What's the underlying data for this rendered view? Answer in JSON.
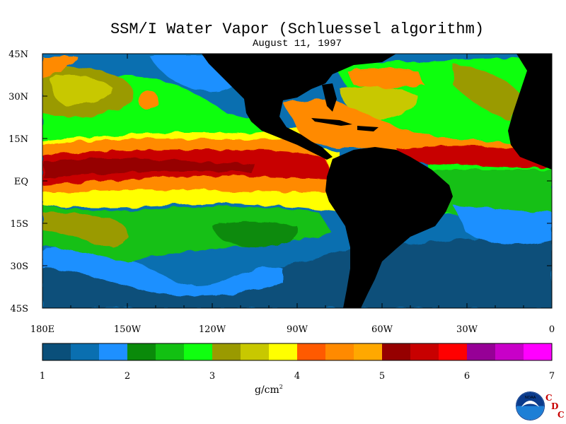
{
  "title": "SSM/I Water Vapor (Schluessel algorithm)",
  "date": "August 11, 1997",
  "lat_labels": [
    "45N",
    "30N",
    "15N",
    "EQ",
    "15S",
    "30S",
    "45S"
  ],
  "lon_labels": [
    "180E",
    "150W",
    "120W",
    "90W",
    "60W",
    "30W",
    "0"
  ],
  "colorbar": {
    "labels": [
      "1",
      "2",
      "3",
      "4",
      "5",
      "6",
      "7"
    ],
    "unit": "g/cm",
    "unit_sup": "2",
    "colors": [
      "#0a4f7a",
      "#0a6fb0",
      "#1e90ff",
      "#0a8a0a",
      "#12c012",
      "#10ff10",
      "#9a9a00",
      "#c8c800",
      "#ffff00",
      "#ff5a00",
      "#ff8a00",
      "#ffa800",
      "#960000",
      "#c80000",
      "#ff0000",
      "#960096",
      "#c800c8",
      "#ff00ff"
    ]
  },
  "logo": {
    "text": "NOAA",
    "icon": "noaa-logo"
  },
  "cdc": {
    "c1": "C",
    "d": "D",
    "c2": "C"
  },
  "map_colors": {
    "land": "#000000",
    "deep_blue": "#0a4f7a",
    "blue": "#0a6fb0",
    "light_blue": "#1e90ff",
    "dark_green": "#0a8a0a",
    "green": "#12c012",
    "bright_green": "#10ff10",
    "olive": "#9a9a00",
    "yellow_green": "#c8c800",
    "yellow": "#ffff00",
    "orange": "#ff8a00",
    "red": "#c80000",
    "dark_red": "#960000"
  }
}
